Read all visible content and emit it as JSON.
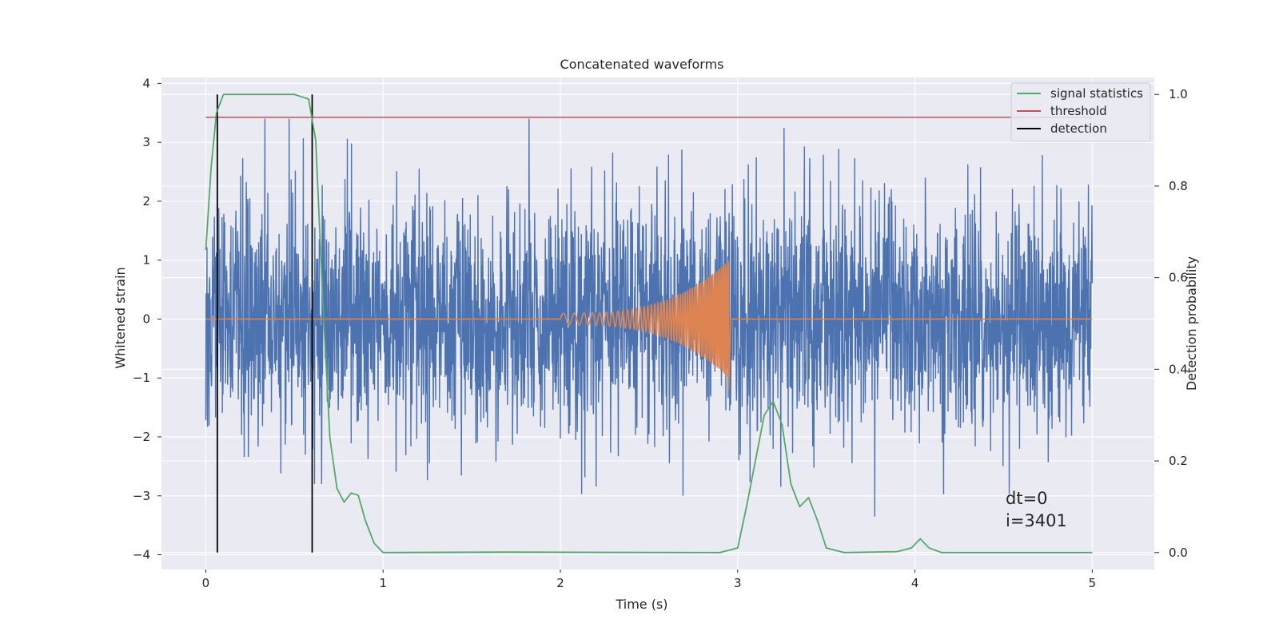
{
  "chart_data": {
    "type": "line",
    "title": "Concatenated waveforms",
    "xlabel": "Time (s)",
    "ylabel_left": "Whitened strain",
    "ylabel_right": "Detection probability",
    "xlim": [
      -0.25,
      5.35
    ],
    "ylim_left": [
      -4.25,
      4.1
    ],
    "ylim_right": [
      -0.037,
      1.037
    ],
    "xticks": [
      0,
      1,
      2,
      3,
      4,
      5
    ],
    "yticks_left": [
      -4,
      -3,
      -2,
      -1,
      0,
      1,
      2,
      3,
      4
    ],
    "yticks_right": [
      0.0,
      0.2,
      0.4,
      0.6,
      0.8,
      1.0
    ],
    "ytick_labels_left": [
      "−4",
      "−3",
      "−2",
      "−1",
      "0",
      "1",
      "2",
      "3",
      "4"
    ],
    "ytick_labels_right": [
      "0.0",
      "0.2",
      "0.4",
      "0.6",
      "0.8",
      "1.0"
    ],
    "grid": true,
    "legend_position": "top-right",
    "legend": [
      {
        "label": "signal statistics",
        "color": "#55a868"
      },
      {
        "label": "threshold",
        "color": "#c44e52"
      },
      {
        "label": "detection",
        "color": "#000000"
      }
    ],
    "colors": {
      "strain": "#4c72b0",
      "injected_waveform": "#dd8452",
      "signal_statistics": "#55a868",
      "threshold": "#c44e52",
      "detection": "#000000",
      "plot_background": "#eaeaf2",
      "grid": "#ffffff"
    },
    "strain_noise": {
      "x_range": [
        0,
        5
      ],
      "typical_amplitude": 1.0,
      "peak_max": 3.4,
      "peak_min": -3.35
    },
    "chirp": {
      "start": 2.0,
      "end": 2.95,
      "amp_start": 0.1,
      "amp_end": 1.0
    },
    "signal_statistics": {
      "x": [
        0.0,
        0.03,
        0.06,
        0.1,
        0.15,
        0.3,
        0.5,
        0.58,
        0.62,
        0.66,
        0.7,
        0.74,
        0.78,
        0.82,
        0.86,
        0.9,
        0.95,
        1.0,
        1.7,
        2.9,
        3.0,
        3.05,
        3.1,
        3.15,
        3.2,
        3.25,
        3.3,
        3.35,
        3.4,
        3.45,
        3.5,
        3.6,
        3.9,
        3.98,
        4.03,
        4.08,
        4.15,
        4.5,
        5.0
      ],
      "y": [
        0.66,
        0.84,
        0.96,
        1.0,
        1.0,
        1.0,
        1.0,
        0.99,
        0.9,
        0.55,
        0.25,
        0.14,
        0.11,
        0.13,
        0.125,
        0.07,
        0.02,
        0.0,
        0.001,
        0.0,
        0.01,
        0.1,
        0.2,
        0.3,
        0.33,
        0.28,
        0.15,
        0.1,
        0.12,
        0.07,
        0.01,
        0.0,
        0.002,
        0.01,
        0.03,
        0.01,
        0.0,
        0.0,
        0.0
      ]
    },
    "threshold": {
      "value": 0.95,
      "x_range": [
        0,
        5
      ]
    },
    "detections": [
      0.065,
      0.6
    ],
    "annotations": [
      "dt=0",
      "i=3401"
    ]
  }
}
